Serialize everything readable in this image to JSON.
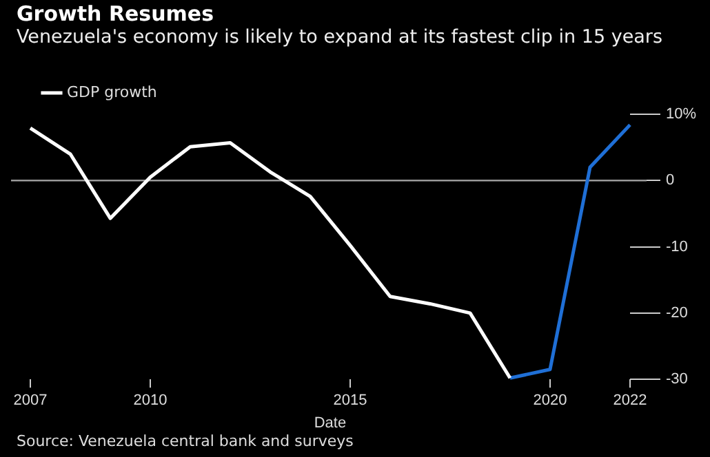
{
  "chart_data": {
    "type": "line",
    "title": "Growth Resumes",
    "subtitle": "Venezuela's economy is likely to expand at its fastest clip in 15 years",
    "xlabel": "Date",
    "x": [
      2007,
      2008,
      2009,
      2010,
      2011,
      2012,
      2013,
      2014,
      2015,
      2016,
      2017,
      2018,
      2019,
      2020,
      2021,
      2022
    ],
    "series": [
      {
        "name": "GDP growth",
        "color": "#ffffff",
        "values": [
          7.9,
          4.0,
          -5.7,
          0.5,
          5.1,
          5.7,
          1.3,
          -2.4,
          -9.8,
          -17.5,
          -18.6,
          -20,
          -29.8,
          null,
          null,
          null
        ]
      },
      {
        "color": "#1f6fd6",
        "values": [
          null,
          null,
          null,
          null,
          null,
          null,
          null,
          null,
          null,
          null,
          null,
          null,
          -29.8,
          -28.5,
          2.0,
          8.4
        ]
      }
    ],
    "xlim": [
      2007,
      2022
    ],
    "xticks": [
      2007,
      2010,
      2015,
      2020,
      2022
    ],
    "ylim": [
      -30,
      10
    ],
    "yticks": [
      {
        "value": 10,
        "label": "10%"
      },
      0,
      -10,
      -20,
      -30
    ],
    "ref_lines": [
      {
        "axis": "y",
        "value": 0,
        "color": "#9a9a9a"
      }
    ],
    "legend": "top left",
    "grid": false,
    "marker": "none",
    "line_style": "solid",
    "annotations": [
      "Source: Venezuela central bank and surveys"
    ]
  }
}
